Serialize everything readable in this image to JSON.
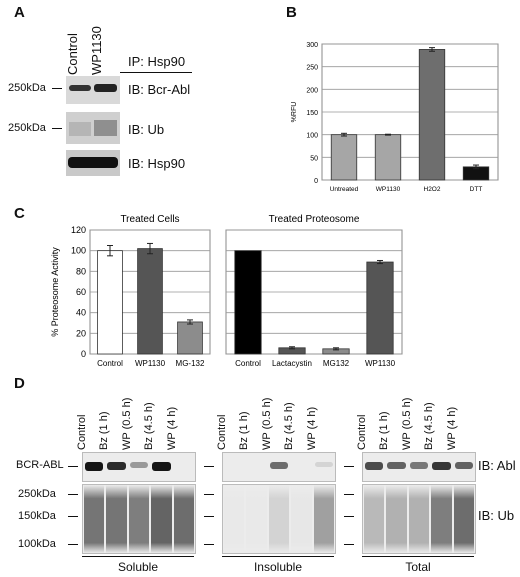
{
  "panels": {
    "a": "A",
    "b": "B",
    "c": "C",
    "d": "D"
  },
  "panel_a": {
    "lanes": [
      "Control",
      "WP1130"
    ],
    "ip_label": "IP: Hsp90",
    "markers": [
      "250kDa",
      "250kDa"
    ],
    "ib_labels": [
      "IB: Bcr-Abl",
      "IB: Ub",
      "IB: Hsp90"
    ]
  },
  "chart_data": [
    {
      "type": "bar",
      "title": "",
      "xlabel": "",
      "ylabel": "%RFU",
      "categories": [
        "Untreated",
        "WP1130",
        "H2O2",
        "DTT"
      ],
      "values": [
        100,
        100,
        288,
        29
      ],
      "errors": [
        3,
        1,
        4,
        4
      ],
      "colors": [
        "#a6a6a6",
        "#a6a6a6",
        "#6e6e6e",
        "#111111"
      ],
      "ylim": [
        0,
        300
      ],
      "yticks": [
        0,
        50,
        100,
        150,
        200,
        250,
        300
      ],
      "grid": true
    },
    {
      "type": "bar",
      "title": "Treated Cells",
      "xlabel": "",
      "ylabel": "% Proteosome Activity",
      "categories": [
        "Control",
        "WP1130",
        "MG-132"
      ],
      "values": [
        100,
        102,
        31
      ],
      "errors": [
        5,
        5,
        2
      ],
      "colors": [
        "#ffffff",
        "#555555",
        "#8c8c8c"
      ],
      "ylim": [
        0,
        120
      ],
      "yticks": [
        0,
        20,
        40,
        60,
        80,
        100,
        120
      ],
      "grid": true
    },
    {
      "type": "bar",
      "title": "Treated Proteosome",
      "xlabel": "",
      "ylabel": "",
      "categories": [
        "Control",
        "Lactacystin",
        "MG132",
        "WP1130"
      ],
      "values": [
        100,
        6,
        5,
        89
      ],
      "errors": [
        0,
        1,
        1,
        1.5
      ],
      "colors": [
        "#000000",
        "#555555",
        "#8c8c8c",
        "#555555"
      ],
      "ylim": [
        0,
        120
      ],
      "grid": true
    }
  ],
  "panel_d": {
    "groups": [
      {
        "lanes": [
          "Control",
          "Bz (1 h)",
          "WP (0.5 h)",
          "Bz (4.5 h)",
          "WP (4 h)"
        ],
        "label": "Soluble"
      },
      {
        "lanes": [
          "Control",
          "Bz (1 h)",
          "WP (0.5 h)",
          "Bz (4.5 h)",
          "WP (4 h)"
        ],
        "label": "Insoluble"
      },
      {
        "lanes": [
          "Control",
          "Bz (1 h)",
          "WP (0.5 h)",
          "Bz (4.5 h)",
          "WP (4 h)"
        ],
        "label": "Total"
      }
    ],
    "row_labels": [
      "BCR-ABL",
      "250kDa",
      "150kDa",
      "100kDa"
    ],
    "ib_labels": [
      "IB: Abl",
      "IB: Ub"
    ]
  }
}
